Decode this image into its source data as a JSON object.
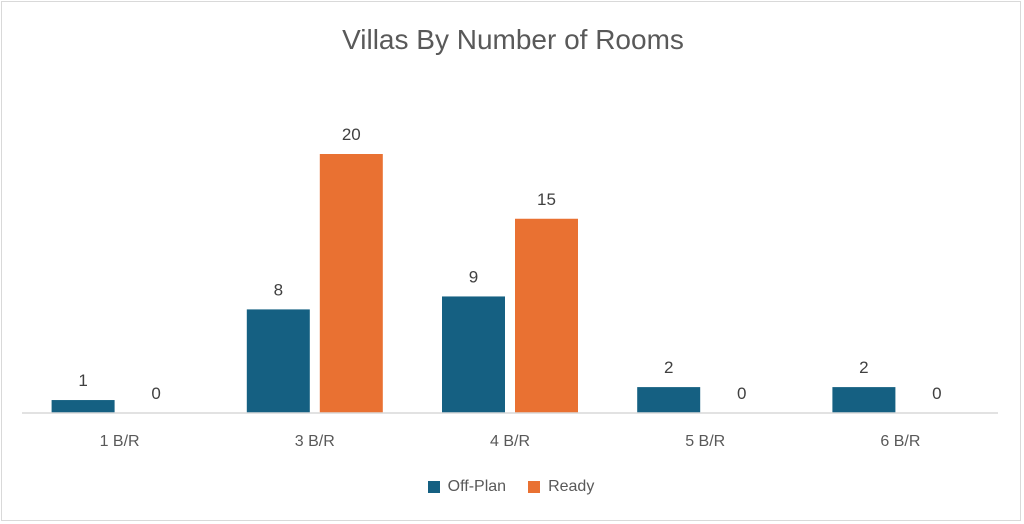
{
  "chart_data": {
    "type": "bar",
    "title": "Villas By Number of Rooms",
    "categories": [
      "1 B/R",
      "3 B/R",
      "4 B/R",
      "5 B/R",
      "6 B/R"
    ],
    "series": [
      {
        "name": "Off-Plan",
        "values": [
          1,
          8,
          9,
          2,
          2
        ],
        "color": "#156082"
      },
      {
        "name": "Ready",
        "values": [
          0,
          20,
          15,
          0,
          0
        ],
        "color": "#E97132"
      }
    ],
    "ylim": [
      0,
      24
    ],
    "grid": false,
    "legend": "bottom-center",
    "data_labels": true
  }
}
